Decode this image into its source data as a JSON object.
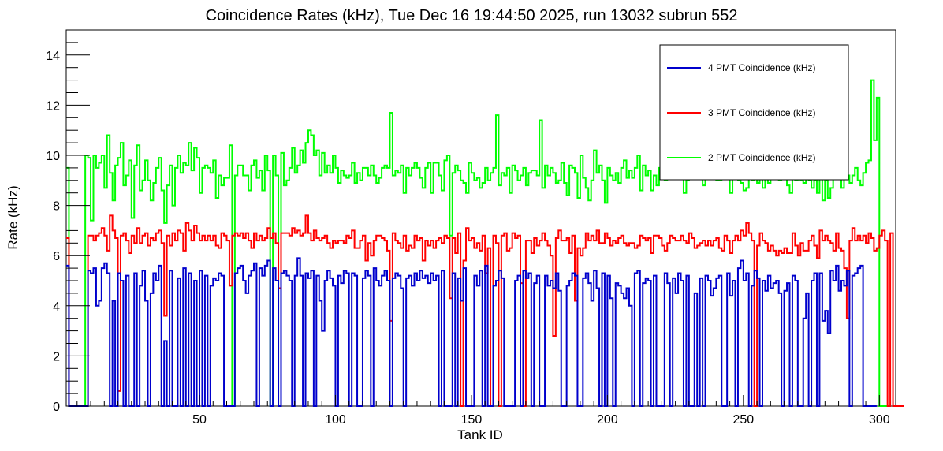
{
  "chart_data": {
    "type": "line",
    "style": "step",
    "title": "Coincidence Rates (kHz), Tue Dec 16 19:44:50 2025, run 13032 subrun 552",
    "xlabel": "Tank ID",
    "ylabel": "Rate (kHz)",
    "xlim": [
      1,
      306
    ],
    "ylim": [
      0,
      15
    ],
    "x_ticks": [
      50,
      100,
      150,
      200,
      250,
      300
    ],
    "y_ticks": [
      0,
      2,
      4,
      6,
      8,
      10,
      12,
      14
    ],
    "x_tick_labels": [
      "50",
      "100",
      "150",
      "200",
      "250",
      "300"
    ],
    "y_tick_labels": [
      "0",
      "2",
      "4",
      "6",
      "8",
      "10",
      "12",
      "14"
    ],
    "grid": false,
    "legend_position": "top-right",
    "series": [
      {
        "name": "4 PMT Coincidence (kHz)",
        "color": "#0000cc",
        "values": [
          5.6,
          0,
          0,
          0,
          0,
          0,
          0,
          0,
          5.4,
          5.3,
          5.5,
          4.0,
          4.2,
          5.5,
          5.7,
          5.3,
          0,
          4.2,
          0,
          5.3,
          5.0,
          0,
          5.2,
          0,
          0,
          5.3,
          0,
          4.8,
          5.4,
          4.2,
          0,
          4.5,
          5.3,
          5.0,
          5.6,
          0,
          2.6,
          0,
          5.4,
          0,
          0,
          5.1,
          0,
          5.5,
          0,
          5.3,
          0,
          5.0,
          0,
          5.4,
          0,
          5.2,
          0,
          4.8,
          5.1,
          5.0,
          5.3,
          5.2,
          0,
          0,
          0,
          0,
          5.3,
          5.5,
          5.6,
          5.0,
          4.5,
          5.2,
          5.4,
          5.7,
          0,
          5.5,
          5.2,
          5.6,
          5.8,
          0,
          5.5,
          5.0,
          0,
          5.3,
          5.4,
          5.2,
          5.0,
          0,
          5.2,
          5.9,
          5.2,
          0,
          5.3,
          5.1,
          5.4,
          0,
          5.2,
          4.2,
          3.0,
          5.0,
          5.4,
          5.1,
          4.8,
          0,
          5.2,
          4.9,
          5.4,
          5.3,
          0,
          5.3,
          5.2,
          0,
          0,
          5.1,
          5.4,
          5.2,
          0,
          5.5,
          5.0,
          4.8,
          5.2,
          5.4,
          5.0,
          0,
          5.1,
          5.3,
          5.2,
          4.7,
          0,
          5.1,
          5.2,
          4.8,
          5.3,
          5.0,
          5.4,
          5.1,
          5.2,
          4.9,
          5.3,
          5.0,
          5.2,
          0,
          5.4,
          0,
          0,
          0,
          5.3,
          0,
          5.1,
          4.2,
          5.5,
          0,
          0,
          0,
          5.2,
          4.8,
          5.4,
          0,
          5.6,
          0,
          0,
          4.8,
          5.0,
          5.4,
          5.1,
          0,
          0,
          0,
          0,
          5.0,
          5.2,
          0,
          5.4,
          5.1,
          5.3,
          0,
          4.9,
          5.2,
          0,
          0,
          5.2,
          4.8,
          5.0,
          4.7,
          5.3,
          4.6,
          0,
          0,
          4.8,
          5.0,
          5.3,
          5.2,
          0,
          0,
          5.1,
          5.3,
          4.9,
          4.2,
          5.4,
          4.7,
          0,
          5.3,
          0,
          5.2,
          4.3,
          0,
          4.9,
          4.8,
          4.5,
          4.3,
          4.7,
          4.0,
          0,
          5.3,
          5.4,
          0,
          4.9,
          5.1,
          5.0,
          0,
          5.2,
          0,
          0,
          0,
          5.3,
          4.9,
          0,
          5.1,
          4.5,
          5.3,
          5.0,
          0,
          5.2,
          0,
          0,
          4.5,
          0,
          5.1,
          0,
          5.2,
          5.0,
          4.4,
          4.7,
          5.1,
          5.2,
          0,
          0,
          5.3,
          4.4,
          5.0,
          0,
          5.5,
          5.8,
          5.0,
          5.3,
          0,
          4.8,
          5.4,
          5.1,
          0,
          5.0,
          4.6,
          5.2,
          4.7,
          4.9,
          5.0,
          4.5,
          0,
          4.6,
          4.9,
          0,
          5.2,
          5.0,
          0,
          0,
          3.5,
          4.5,
          0,
          5.0,
          5.3,
          0,
          5.3,
          3.4,
          3.8,
          2.9,
          5.4,
          5.0,
          5.6,
          4.6,
          5.0,
          4.8,
          5.4,
          0,
          5.2,
          5.3,
          5.5,
          5.6,
          0,
          0,
          0,
          0,
          0
        ]
      },
      {
        "name": "3 PMT Coincidence (kHz)",
        "color": "#ff0000",
        "values": [
          6.7,
          0,
          0,
          0,
          0,
          0,
          0,
          0,
          6.8,
          6.8,
          6.6,
          6.8,
          6.9,
          7.1,
          6.8,
          6.2,
          7.6,
          7.0,
          6.7,
          0.6,
          6.8,
          6.9,
          6.6,
          6.1,
          6.8,
          6.5,
          7.1,
          6.5,
          6.8,
          6.9,
          6.4,
          6.7,
          6.6,
          6.9,
          7.0,
          6.5,
          3.6,
          6.8,
          6.4,
          6.9,
          6.6,
          7.0,
          6.9,
          6.2,
          7.3,
          7.0,
          6.6,
          7.2,
          6.9,
          6.6,
          6.8,
          6.6,
          6.8,
          6.6,
          6.8,
          6.4,
          6.3,
          6.9,
          6.8,
          6.6,
          4.8,
          6.8,
          6.9,
          6.8,
          6.9,
          6.7,
          6.9,
          6.6,
          6.3,
          6.9,
          6.6,
          6.8,
          6.6,
          6.7,
          7.1,
          6.7,
          6.9,
          6.5,
          4.7,
          6.9,
          6.9,
          6.9,
          6.8,
          7.1,
          6.9,
          7.0,
          6.8,
          6.9,
          7.6,
          6.9,
          6.6,
          7.0,
          6.7,
          6.6,
          6.7,
          6.8,
          6.5,
          6.3,
          6.6,
          6.5,
          6.6,
          6.6,
          6.5,
          6.8,
          6.7,
          7.0,
          6.3,
          6.3,
          6.6,
          6.8,
          5.8,
          6.5,
          6.0,
          6.6,
          6.8,
          6.8,
          6.7,
          6.6,
          6.2,
          3.4,
          6.9,
          6.6,
          6.5,
          6.3,
          6.8,
          6.2,
          6.4,
          6.3,
          6.8,
          6.6,
          6.7,
          5.8,
          6.6,
          6.4,
          6.6,
          6.3,
          6.6,
          6.7,
          6.5,
          6.8,
          6.7,
          4.3,
          6.7,
          6.1,
          6.9,
          0,
          5.8,
          7.1,
          6.6,
          6.7,
          6.3,
          6.5,
          6.2,
          6.8,
          5.3,
          6.3,
          0,
          6.8,
          6.5,
          0,
          6.8,
          6.9,
          6.2,
          6.3,
          6.9,
          6.7,
          6.8,
          4.9,
          0,
          6.6,
          6.6,
          6.1,
          6.7,
          6.4,
          6.6,
          6.9,
          6.6,
          6.4,
          6.0,
          2.8,
          6.7,
          7.0,
          6.6,
          6.6,
          6.7,
          6.1,
          6.8,
          4.2,
          6.3,
          6.0,
          6.3,
          6.9,
          6.6,
          6.8,
          6.6,
          7.0,
          6.5,
          6.5,
          6.9,
          6.7,
          6.4,
          6.6,
          6.5,
          6.7,
          6.8,
          6.5,
          6.4,
          6.5,
          6.5,
          6.3,
          6.4,
          6.8,
          6.7,
          6.6,
          6.7,
          6.1,
          6.8,
          6.8,
          6.7,
          6.4,
          6.2,
          6.5,
          6.8,
          6.7,
          6.6,
          6.6,
          6.8,
          6.6,
          6.5,
          6.9,
          6.7,
          6.3,
          6.4,
          6.5,
          6.6,
          6.4,
          6.6,
          6.4,
          6.6,
          6.7,
          6.3,
          6.2,
          6.8,
          6.6,
          6.1,
          6.6,
          6.8,
          6.6,
          7.0,
          6.8,
          7.3,
          6.9,
          6.6,
          0,
          6.4,
          6.9,
          6.6,
          6.5,
          6.2,
          6.4,
          6.2,
          6.0,
          6.2,
          6.1,
          6.3,
          6.1,
          6.1,
          6.9,
          6.4,
          6.0,
          6.5,
          6.2,
          6.2,
          6.6,
          6.8,
          6.4,
          5.9,
          7.0,
          6.6,
          6.8,
          6.6,
          6.5,
          6.2,
          6.9,
          6.3,
          6.2,
          5.5,
          3.5,
          6.6,
          7.1,
          6.6,
          6.8,
          6.6,
          6.8,
          6.5,
          6.9,
          6.7,
          6.2,
          6.3,
          6.8,
          7.0,
          6.6,
          0,
          6.9,
          0,
          0,
          0,
          0
        ]
      },
      {
        "name": "2 PMT Coincidence (kHz)",
        "color": "#00ff00",
        "values": [
          9.5,
          0,
          0,
          0,
          0,
          0,
          0,
          10.0,
          9.9,
          7.4,
          10.0,
          9.5,
          9.7,
          10.0,
          8.7,
          10.8,
          9.3,
          8.2,
          9.6,
          9.9,
          10.5,
          8.8,
          9.2,
          9.8,
          7.5,
          9.6,
          10.4,
          8.6,
          9.0,
          9.8,
          9.0,
          8.2,
          8.9,
          9.5,
          9.9,
          8.6,
          7.3,
          8.8,
          9.6,
          8.0,
          9.5,
          10.0,
          9.3,
          9.7,
          9.6,
          10.5,
          9.4,
          10.3,
          9.9,
          8.5,
          9.5,
          9.6,
          9.5,
          9.3,
          9.8,
          8.3,
          9.2,
          8.8,
          9.1,
          9.1,
          10.4,
          0,
          9.2,
          9.6,
          9.6,
          9.2,
          9.2,
          8.6,
          9.6,
          9.8,
          9.1,
          9.4,
          8.6,
          10.0,
          9.4,
          0,
          10.0,
          9.2,
          0,
          10.1,
          8.8,
          9.0,
          9.5,
          10.3,
          9.3,
          9.6,
          10.2,
          9.7,
          10.5,
          11.0,
          10.8,
          10.0,
          10.2,
          9.2,
          10.1,
          9.3,
          9.6,
          9.3,
          10.0,
          9.5,
          8.9,
          9.4,
          9.2,
          9.1,
          9.2,
          9.7,
          8.9,
          9.3,
          9.0,
          9.5,
          9.5,
          9.2,
          9.6,
          9.2,
          8.9,
          9.1,
          9.5,
          9.6,
          9.5,
          11.7,
          9.2,
          9.4,
          9.3,
          9.6,
          8.5,
          9.5,
          9.2,
          9.5,
          9.7,
          9.5,
          9.1,
          8.7,
          9.5,
          9.7,
          8.5,
          9.7,
          9.7,
          9.2,
          8.6,
          9.8,
          10.0,
          6.8,
          9.3,
          9.6,
          9.4,
          9.0,
          8.9,
          8.5,
          9.7,
          9.3,
          9.0,
          9.1,
          8.7,
          8.9,
          9.5,
          9.0,
          9.3,
          9.5,
          11.6,
          8.8,
          9.3,
          9.2,
          9.5,
          8.5,
          9.6,
          9.4,
          9.0,
          9.2,
          9.5,
          8.8,
          9.3,
          9.4,
          9.4,
          9.2,
          11.4,
          8.7,
          9.6,
          9.2,
          9.5,
          9.3,
          8.9,
          9.0,
          9.7,
          8.9,
          8.4,
          9.6,
          9.5,
          9.3,
          8.3,
          10.0,
          9.1,
          8.7,
          8.2,
          9.0,
          10.2,
          9.3,
          9.6,
          9.0,
          8.1,
          9.5,
          9.2,
          9.0,
          9.3,
          8.9,
          9.5,
          9.8,
          9.1,
          9.4,
          9.1,
          9.5,
          10.0,
          8.6,
          9.6,
          9.2,
          9.4,
          8.6,
          9.2,
          8.8,
          9.5,
          9.3,
          9.0,
          9.2,
          9.4,
          9.1,
          9.1,
          9.1,
          9.2,
          8.5,
          9.0,
          9.4,
          9.2,
          9.3,
          9.2,
          9.1,
          8.8,
          9.5,
          9.4,
          9.1,
          9.2,
          9.0,
          9.0,
          9.4,
          9.1,
          9.2,
          8.5,
          9.3,
          9.3,
          9.0,
          8.9,
          8.6,
          8.7,
          9.3,
          9.0,
          9.2,
          8.9,
          9.1,
          8.7,
          9.1,
          8.9,
          9.2,
          9.4,
          9.3,
          9.0,
          9.2,
          9.1,
          8.8,
          8.5,
          9.1,
          9.0,
          9.3,
          9.0,
          8.9,
          9.4,
          9.0,
          8.7,
          9.0,
          8.5,
          9.2,
          8.2,
          9.0,
          8.3,
          8.7,
          9.1,
          9.6,
          9.4,
          8.7,
          9.1,
          9.2,
          8.9,
          9.2,
          9.5,
          9.0,
          8.8,
          9.3,
          9.7,
          9.8,
          13.0,
          10.6,
          12.3,
          0,
          0,
          0
        ]
      }
    ]
  }
}
